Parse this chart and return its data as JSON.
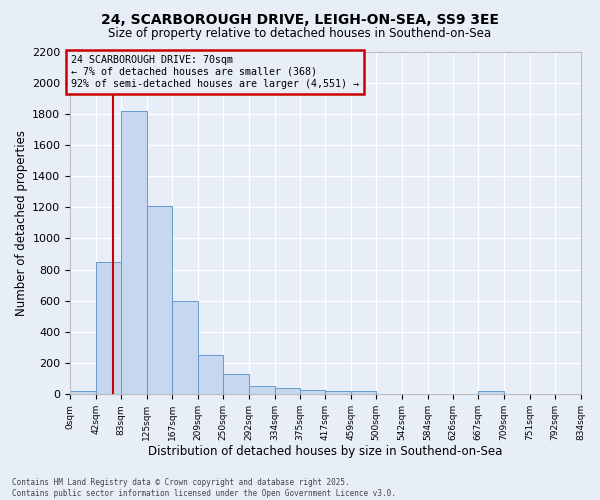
{
  "title_line1": "24, SCARBOROUGH DRIVE, LEIGH-ON-SEA, SS9 3EE",
  "title_line2": "Size of property relative to detached houses in Southend-on-Sea",
  "xlabel": "Distribution of detached houses by size in Southend-on-Sea",
  "ylabel": "Number of detached properties",
  "bin_edges": [
    0,
    42,
    83,
    125,
    167,
    209,
    250,
    292,
    334,
    375,
    417,
    459,
    500,
    542,
    584,
    626,
    667,
    709,
    751,
    792,
    834
  ],
  "bar_heights": [
    20,
    850,
    1820,
    1210,
    600,
    255,
    130,
    50,
    40,
    25,
    20,
    20,
    0,
    0,
    0,
    0,
    20,
    0,
    0,
    0
  ],
  "bar_color": "#c5d8f0",
  "bar_edge_color": "#6699cc",
  "property_size": 70,
  "property_label": "24 SCARBOROUGH DRIVE: 70sqm",
  "annotation_line1": "← 7% of detached houses are smaller (368)",
  "annotation_line2": "92% of semi-detached houses are larger (4,551) →",
  "vline_color": "#cc0000",
  "box_edge_color": "#cc0000",
  "ylim": [
    0,
    2200
  ],
  "yticks": [
    0,
    200,
    400,
    600,
    800,
    1000,
    1200,
    1400,
    1600,
    1800,
    2000,
    2200
  ],
  "bg_color": "#e8eef8",
  "grid_color": "#ffffff",
  "footer_line1": "Contains HM Land Registry data © Crown copyright and database right 2025.",
  "footer_line2": "Contains public sector information licensed under the Open Government Licence v3.0."
}
